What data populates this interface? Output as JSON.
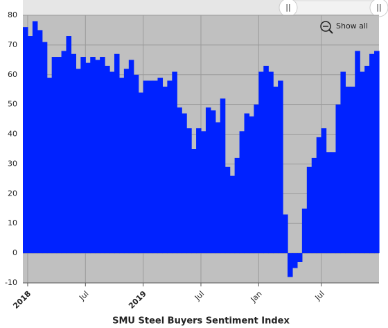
{
  "chart_data": {
    "type": "step-area",
    "title": "SMU Steel Buyers Sentiment Index",
    "button": "Show all",
    "color": "#0022ff",
    "grid": true,
    "ylim": [
      -10,
      80
    ],
    "yticks": [
      -10,
      0,
      10,
      20,
      30,
      40,
      50,
      60,
      70,
      80
    ],
    "categories": [
      null,
      "2018",
      null,
      null,
      null,
      null,
      null,
      null,
      null,
      null,
      null,
      null,
      null,
      "Jul",
      null,
      null,
      null,
      null,
      null,
      null,
      null,
      null,
      null,
      null,
      null,
      "2019",
      null,
      null,
      null,
      null,
      null,
      null,
      null,
      null,
      null,
      null,
      null,
      "Jul",
      null,
      null,
      null,
      null,
      null,
      null,
      null,
      null,
      null,
      null,
      null,
      "Jan",
      null,
      null,
      null,
      null,
      null,
      null,
      null,
      null,
      null,
      null,
      null,
      null,
      "Jul",
      null,
      null,
      null,
      null,
      null,
      null,
      null,
      null,
      null,
      null,
      null
    ],
    "values": [
      76,
      73,
      78,
      75,
      71,
      59,
      66,
      66,
      68,
      73,
      67,
      62,
      66,
      64,
      66,
      65,
      66,
      63,
      61,
      67,
      59,
      62,
      65,
      60,
      54,
      58,
      58,
      58,
      59,
      56,
      58,
      61,
      49,
      47,
      42,
      35,
      42,
      41,
      49,
      48,
      44,
      52,
      29,
      26,
      32,
      41,
      47,
      46,
      50,
      61,
      63,
      61,
      56,
      58,
      13,
      -8,
      -5,
      -3,
      15,
      29,
      32,
      39,
      42,
      34,
      34,
      50,
      61,
      56,
      56,
      68,
      61,
      63,
      67,
      68
    ]
  }
}
